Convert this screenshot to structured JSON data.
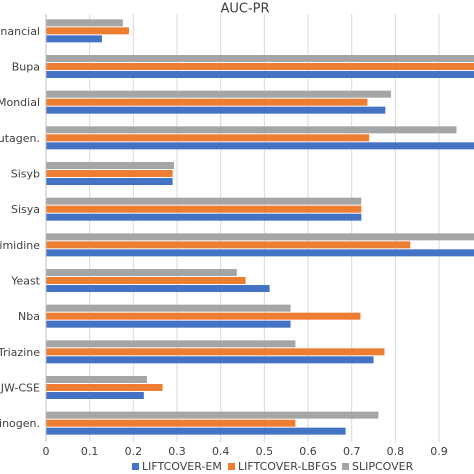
{
  "chart_data": {
    "type": "barh",
    "title": "AUC-PR",
    "categories": [
      "inancial",
      "Bupa",
      "Mondial",
      "utagen.",
      "Sisyb",
      "Sisya",
      "imidine",
      "Yeast",
      "Nba",
      "Triazine",
      "JW-CSE",
      "inogen."
    ],
    "series": [
      {
        "name": "LIFTCOVER-EM",
        "color": "#4472c4",
        "values": [
          0.128,
          1,
          0.777,
          1,
          0.29,
          0.722,
          1,
          0.512,
          0.56,
          0.75,
          0.224,
          0.686
        ]
      },
      {
        "name": "LIFTCOVER-LBFGS",
        "color": "#ed7d31",
        "values": [
          0.19,
          1,
          0.736,
          0.74,
          0.29,
          0.722,
          0.834,
          0.457,
          0.72,
          0.775,
          0.267,
          0.571
        ]
      },
      {
        "name": "SLIPCOVER",
        "color": "#a5a5a5",
        "values": [
          0.176,
          1,
          0.79,
          0.94,
          0.293,
          0.722,
          1,
          0.437,
          0.56,
          0.571,
          0.231,
          0.761
        ]
      }
    ],
    "xlim": [
      0,
      0.98
    ],
    "xticks": [
      0,
      0.1,
      0.2,
      0.3,
      0.4,
      0.5,
      0.6,
      0.7,
      0.8,
      0.9
    ],
    "grid": true,
    "legend": "bottom"
  }
}
